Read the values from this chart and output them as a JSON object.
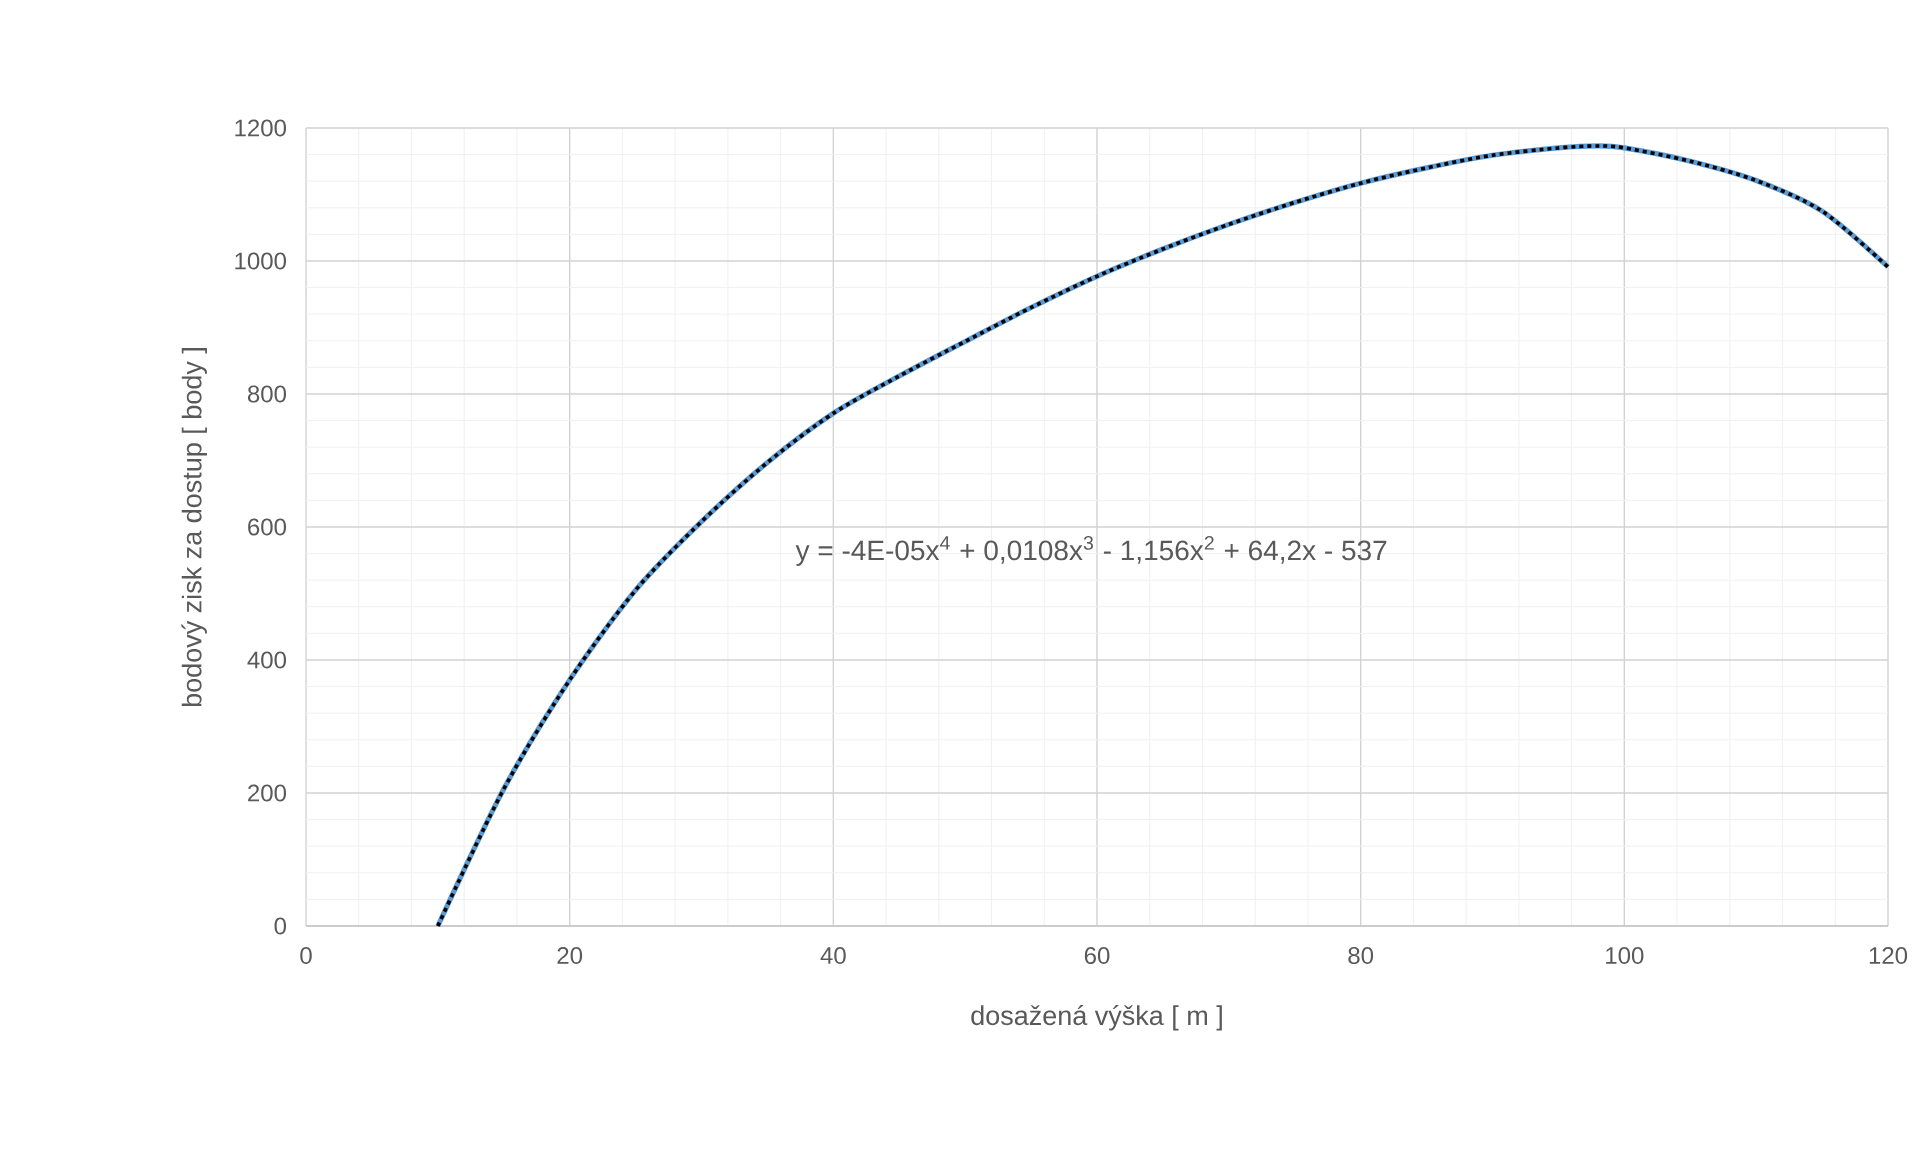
{
  "chart_data": {
    "type": "line",
    "xlabel": "dosažená výška [ m ]",
    "ylabel": "bodový zisk za dostup [ body ]",
    "annotations": [
      "y = -4E-05x$^{4}$ + 0,0108x$^{3}$ - 1,156x$^{2}$ + 64,2x - 537"
    ],
    "xlim": [
      0,
      120
    ],
    "xticks": [
      0,
      20,
      40,
      60,
      80,
      100,
      120
    ],
    "ylim": [
      0,
      1200
    ],
    "yticks": [
      0,
      200,
      400,
      600,
      800,
      1000,
      1200
    ],
    "grid": true,
    "marker": "none",
    "series": [
      {
        "color": "#5b9bd5",
        "line_style": "solid",
        "x": [
          10,
          15,
          20,
          25,
          30,
          35,
          40,
          45,
          50,
          55,
          60,
          65,
          70,
          75,
          80,
          85,
          90,
          95,
          98,
          100,
          105,
          110,
          115,
          120
        ],
        "values": [
          0,
          206,
          370,
          505,
          608,
          697,
          771,
          827,
          879,
          930,
          977,
          1018,
          1055,
          1088,
          1117,
          1140,
          1159,
          1170,
          1173,
          1170,
          1150,
          1121,
          1075,
          991
        ]
      },
      {
        "color": "#000000",
        "line_style": "dotted",
        "x": [
          10,
          15,
          20,
          25,
          30,
          35,
          40,
          45,
          50,
          55,
          60,
          65,
          70,
          75,
          80,
          85,
          90,
          95,
          98,
          100,
          105,
          110,
          115,
          120
        ],
        "values": [
          0,
          206,
          370,
          505,
          608,
          697,
          771,
          827,
          879,
          930,
          977,
          1018,
          1055,
          1088,
          1117,
          1140,
          1159,
          1170,
          1173,
          1170,
          1150,
          1121,
          1075,
          991
        ]
      }
    ]
  }
}
